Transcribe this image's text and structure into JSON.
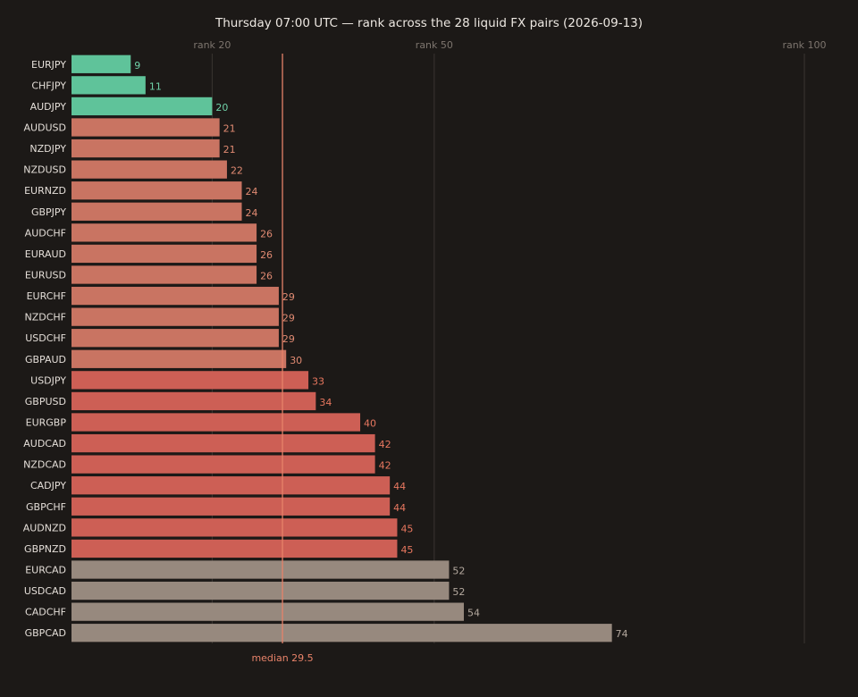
{
  "chart_data": {
    "type": "bar",
    "orientation": "horizontal",
    "title": "Thursday 07:00 UTC — rank across the 28 liquid FX pairs (2026-09-13)",
    "xlabel": "",
    "ylabel": "",
    "xlim": [
      0,
      100
    ],
    "grid": true,
    "reference_ticks": [
      {
        "value": 20,
        "label": "rank 20"
      },
      {
        "value": 50,
        "label": "rank 50"
      },
      {
        "value": 100,
        "label": "rank 100"
      }
    ],
    "median": {
      "value": 29.5,
      "label": "median 29.5",
      "color": "#e8836a"
    },
    "colors": {
      "green": "#5fc39a",
      "terracotta": "#c97462",
      "red": "#cd5f55",
      "gray": "#97897e",
      "label_green": "#6fd1a8",
      "label_terracotta": "#e08a72",
      "label_red": "#e8775f",
      "label_gray": "#b3a89e"
    },
    "bars": [
      {
        "pair": "EURJPY",
        "value": 9,
        "group": "green"
      },
      {
        "pair": "CHFJPY",
        "value": 11,
        "group": "green"
      },
      {
        "pair": "AUDJPY",
        "value": 20,
        "group": "green"
      },
      {
        "pair": "AUDUSD",
        "value": 21,
        "group": "terracotta"
      },
      {
        "pair": "NZDJPY",
        "value": 21,
        "group": "terracotta"
      },
      {
        "pair": "NZDUSD",
        "value": 22,
        "group": "terracotta"
      },
      {
        "pair": "EURNZD",
        "value": 24,
        "group": "terracotta"
      },
      {
        "pair": "GBPJPY",
        "value": 24,
        "group": "terracotta"
      },
      {
        "pair": "AUDCHF",
        "value": 26,
        "group": "terracotta"
      },
      {
        "pair": "EURAUD",
        "value": 26,
        "group": "terracotta"
      },
      {
        "pair": "EURUSD",
        "value": 26,
        "group": "terracotta"
      },
      {
        "pair": "EURCHF",
        "value": 29,
        "group": "terracotta"
      },
      {
        "pair": "NZDCHF",
        "value": 29,
        "group": "terracotta"
      },
      {
        "pair": "USDCHF",
        "value": 29,
        "group": "terracotta"
      },
      {
        "pair": "GBPAUD",
        "value": 30,
        "group": "terracotta"
      },
      {
        "pair": "USDJPY",
        "value": 33,
        "group": "red"
      },
      {
        "pair": "GBPUSD",
        "value": 34,
        "group": "red"
      },
      {
        "pair": "EURGBP",
        "value": 40,
        "group": "red"
      },
      {
        "pair": "AUDCAD",
        "value": 42,
        "group": "red"
      },
      {
        "pair": "NZDCAD",
        "value": 42,
        "group": "red"
      },
      {
        "pair": "CADJPY",
        "value": 44,
        "group": "red"
      },
      {
        "pair": "GBPCHF",
        "value": 44,
        "group": "red"
      },
      {
        "pair": "AUDNZD",
        "value": 45,
        "group": "red"
      },
      {
        "pair": "GBPNZD",
        "value": 45,
        "group": "red"
      },
      {
        "pair": "EURCAD",
        "value": 52,
        "group": "gray"
      },
      {
        "pair": "USDCAD",
        "value": 52,
        "group": "gray"
      },
      {
        "pair": "CADCHF",
        "value": 54,
        "group": "gray"
      },
      {
        "pair": "GBPCAD",
        "value": 74,
        "group": "gray"
      }
    ]
  }
}
